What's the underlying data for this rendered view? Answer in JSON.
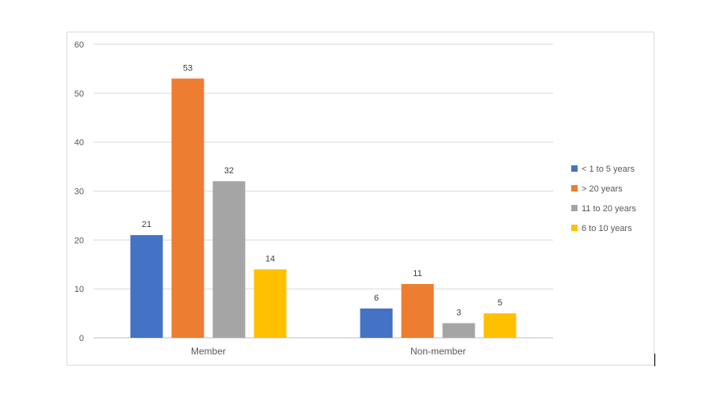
{
  "chart_data": {
    "type": "bar",
    "title": "",
    "xlabel": "",
    "ylabel": "",
    "categories": [
      "Member",
      "Non-member"
    ],
    "ylim": [
      0,
      60
    ],
    "yticks": [
      "0",
      "10",
      "20",
      "30",
      "40",
      "50",
      "60"
    ],
    "grid": true,
    "legend_position": "right",
    "series": [
      {
        "name": "< 1 to 5 years",
        "values": [
          21,
          6
        ],
        "color": "#4472C4"
      },
      {
        "name": "> 20 years",
        "values": [
          53,
          11
        ],
        "color": "#ED7D31"
      },
      {
        "name": "11 to 20 years",
        "values": [
          32,
          3
        ],
        "color": "#A5A5A5"
      },
      {
        "name": "6 to 10 years",
        "values": [
          14,
          5
        ],
        "color": "#FFC000"
      }
    ]
  }
}
